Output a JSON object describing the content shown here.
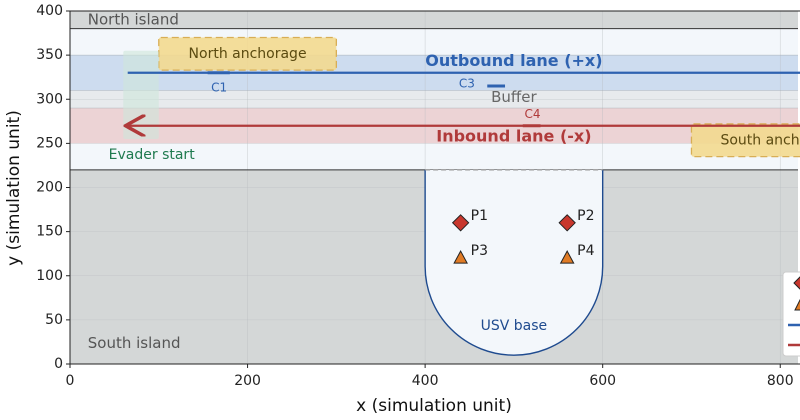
{
  "chart_data": {
    "type": "region-map",
    "xlabel": "x (simulation unit)",
    "ylabel": "y (simulation unit)",
    "xlim": [
      0,
      820
    ],
    "ylim": [
      0,
      400
    ],
    "xticks": [
      0,
      200,
      400,
      600,
      800
    ],
    "yticks": [
      0,
      50,
      100,
      150,
      200,
      250,
      300,
      350,
      400
    ],
    "grid": true,
    "water": {
      "y": [
        220,
        380
      ],
      "color": "#f3f7fb"
    },
    "bands": [
      {
        "name": "North island",
        "y": [
          380,
          400
        ],
        "color": "#d4d7d7",
        "label_at": [
          20,
          390
        ],
        "label_color": "#555555"
      },
      {
        "name": "Outbound lane (+x)",
        "y": [
          310,
          350
        ],
        "color": "#cddcef",
        "label_at": [
          500,
          343
        ],
        "label_color": "#2e62b0"
      },
      {
        "name": "Buffer",
        "y": [
          290,
          310
        ],
        "color": "#e7eaed",
        "label_at": [
          500,
          302
        ],
        "label_color": "#666666"
      },
      {
        "name": "Inbound lane (-x)",
        "y": [
          250,
          290
        ],
        "color": "#ecd3d5",
        "label_at": [
          500,
          257
        ],
        "label_color": "#b03a3a"
      },
      {
        "name": "South island",
        "y": [
          0,
          220
        ],
        "color": "#d4d7d7",
        "label_at": [
          20,
          23
        ],
        "label_color": "#555555"
      }
    ],
    "boxes": [
      {
        "name": "North anchorage",
        "x": [
          100,
          300
        ],
        "y": [
          333,
          370
        ],
        "color": "#f3d98f",
        "label_color": "#5a4a10"
      },
      {
        "name": "South anchorage",
        "x": [
          700,
          900
        ],
        "y": [
          235,
          272
        ],
        "color": "#f3d98f",
        "label_color": "#5a4a10"
      },
      {
        "name": "Evader start",
        "x": [
          60,
          100
        ],
        "y": [
          255,
          355
        ],
        "color": "#cfe6db",
        "label_color": "#1f7a4f",
        "label_at": [
          92,
          237
        ]
      }
    ],
    "base": {
      "name": "USV base",
      "x": [
        400,
        600
      ],
      "y": [
        10,
        220
      ],
      "label_at": [
        500,
        43
      ]
    },
    "lanes": [
      {
        "y": 330,
        "x": [
          65,
          900
        ],
        "color": "#2e62b0",
        "direction": "+x"
      },
      {
        "y": 270,
        "x": [
          900,
          65
        ],
        "color": "#b03a3a",
        "direction": "-x"
      }
    ],
    "checkpoints": [
      {
        "name": "C1",
        "x": [
          155,
          180
        ],
        "y": 330,
        "color": "#2e62b0",
        "label_at": [
          168,
          313
        ]
      },
      {
        "name": "C3",
        "x": [
          470,
          490
        ],
        "y": 315,
        "color": "#2e62b0",
        "label_at": [
          447,
          317
        ]
      },
      {
        "name": "C4",
        "x": [
          510,
          530
        ],
        "y": 270,
        "color": "#b03a3a",
        "label_at": [
          521,
          283
        ]
      }
    ],
    "points": [
      {
        "name": "P1",
        "x": 440,
        "y": 160,
        "marker": "diamond",
        "color": "#c8372d"
      },
      {
        "name": "P2",
        "x": 560,
        "y": 160,
        "marker": "diamond",
        "color": "#c8372d"
      },
      {
        "name": "P3",
        "x": 440,
        "y": 120,
        "marker": "triangle",
        "color": "#e07b25"
      },
      {
        "name": "P4",
        "x": 560,
        "y": 120,
        "marker": "triangle",
        "color": "#e07b25"
      }
    ]
  }
}
